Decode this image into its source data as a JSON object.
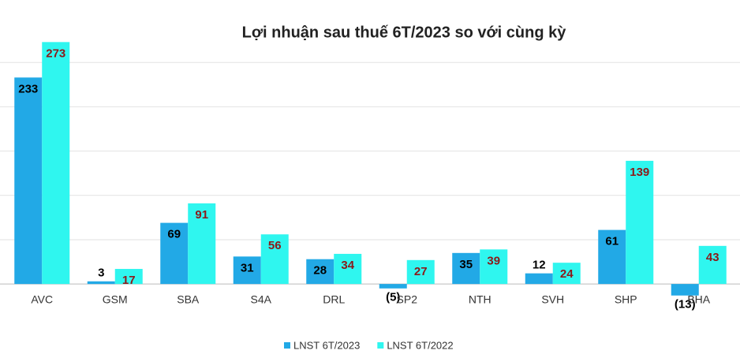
{
  "chart_data": {
    "type": "bar",
    "title": "Lợi nhuận sau thuế 6T/2023 so với cùng kỳ",
    "categories": [
      "AVC",
      "GSM",
      "SBA",
      "S4A",
      "DRL",
      "SP2",
      "NTH",
      "SVH",
      "SHP",
      "BHA"
    ],
    "series": [
      {
        "name": "LNST 6T/2023",
        "color": "#22a9e6",
        "label_color": "#000000",
        "values": [
          233,
          3,
          69,
          31,
          28,
          -5,
          35,
          12,
          61,
          -13
        ],
        "value_labels": [
          "233",
          "3",
          "69",
          "31",
          "28",
          "(5)",
          "35",
          "12",
          "61",
          "(13)"
        ]
      },
      {
        "name": "LNST 6T/2022",
        "color": "#2ff6ef",
        "label_color": "#8b1a1a",
        "values": [
          273,
          17,
          91,
          56,
          34,
          27,
          39,
          24,
          139,
          43
        ],
        "value_labels": [
          "273",
          "17",
          "91",
          "56",
          "34",
          "27",
          "39",
          "24",
          "139",
          "43"
        ]
      }
    ],
    "ylim": [
      -15,
      300
    ],
    "yticks": [
      0,
      50,
      100,
      150,
      200,
      250
    ],
    "grid": true
  }
}
